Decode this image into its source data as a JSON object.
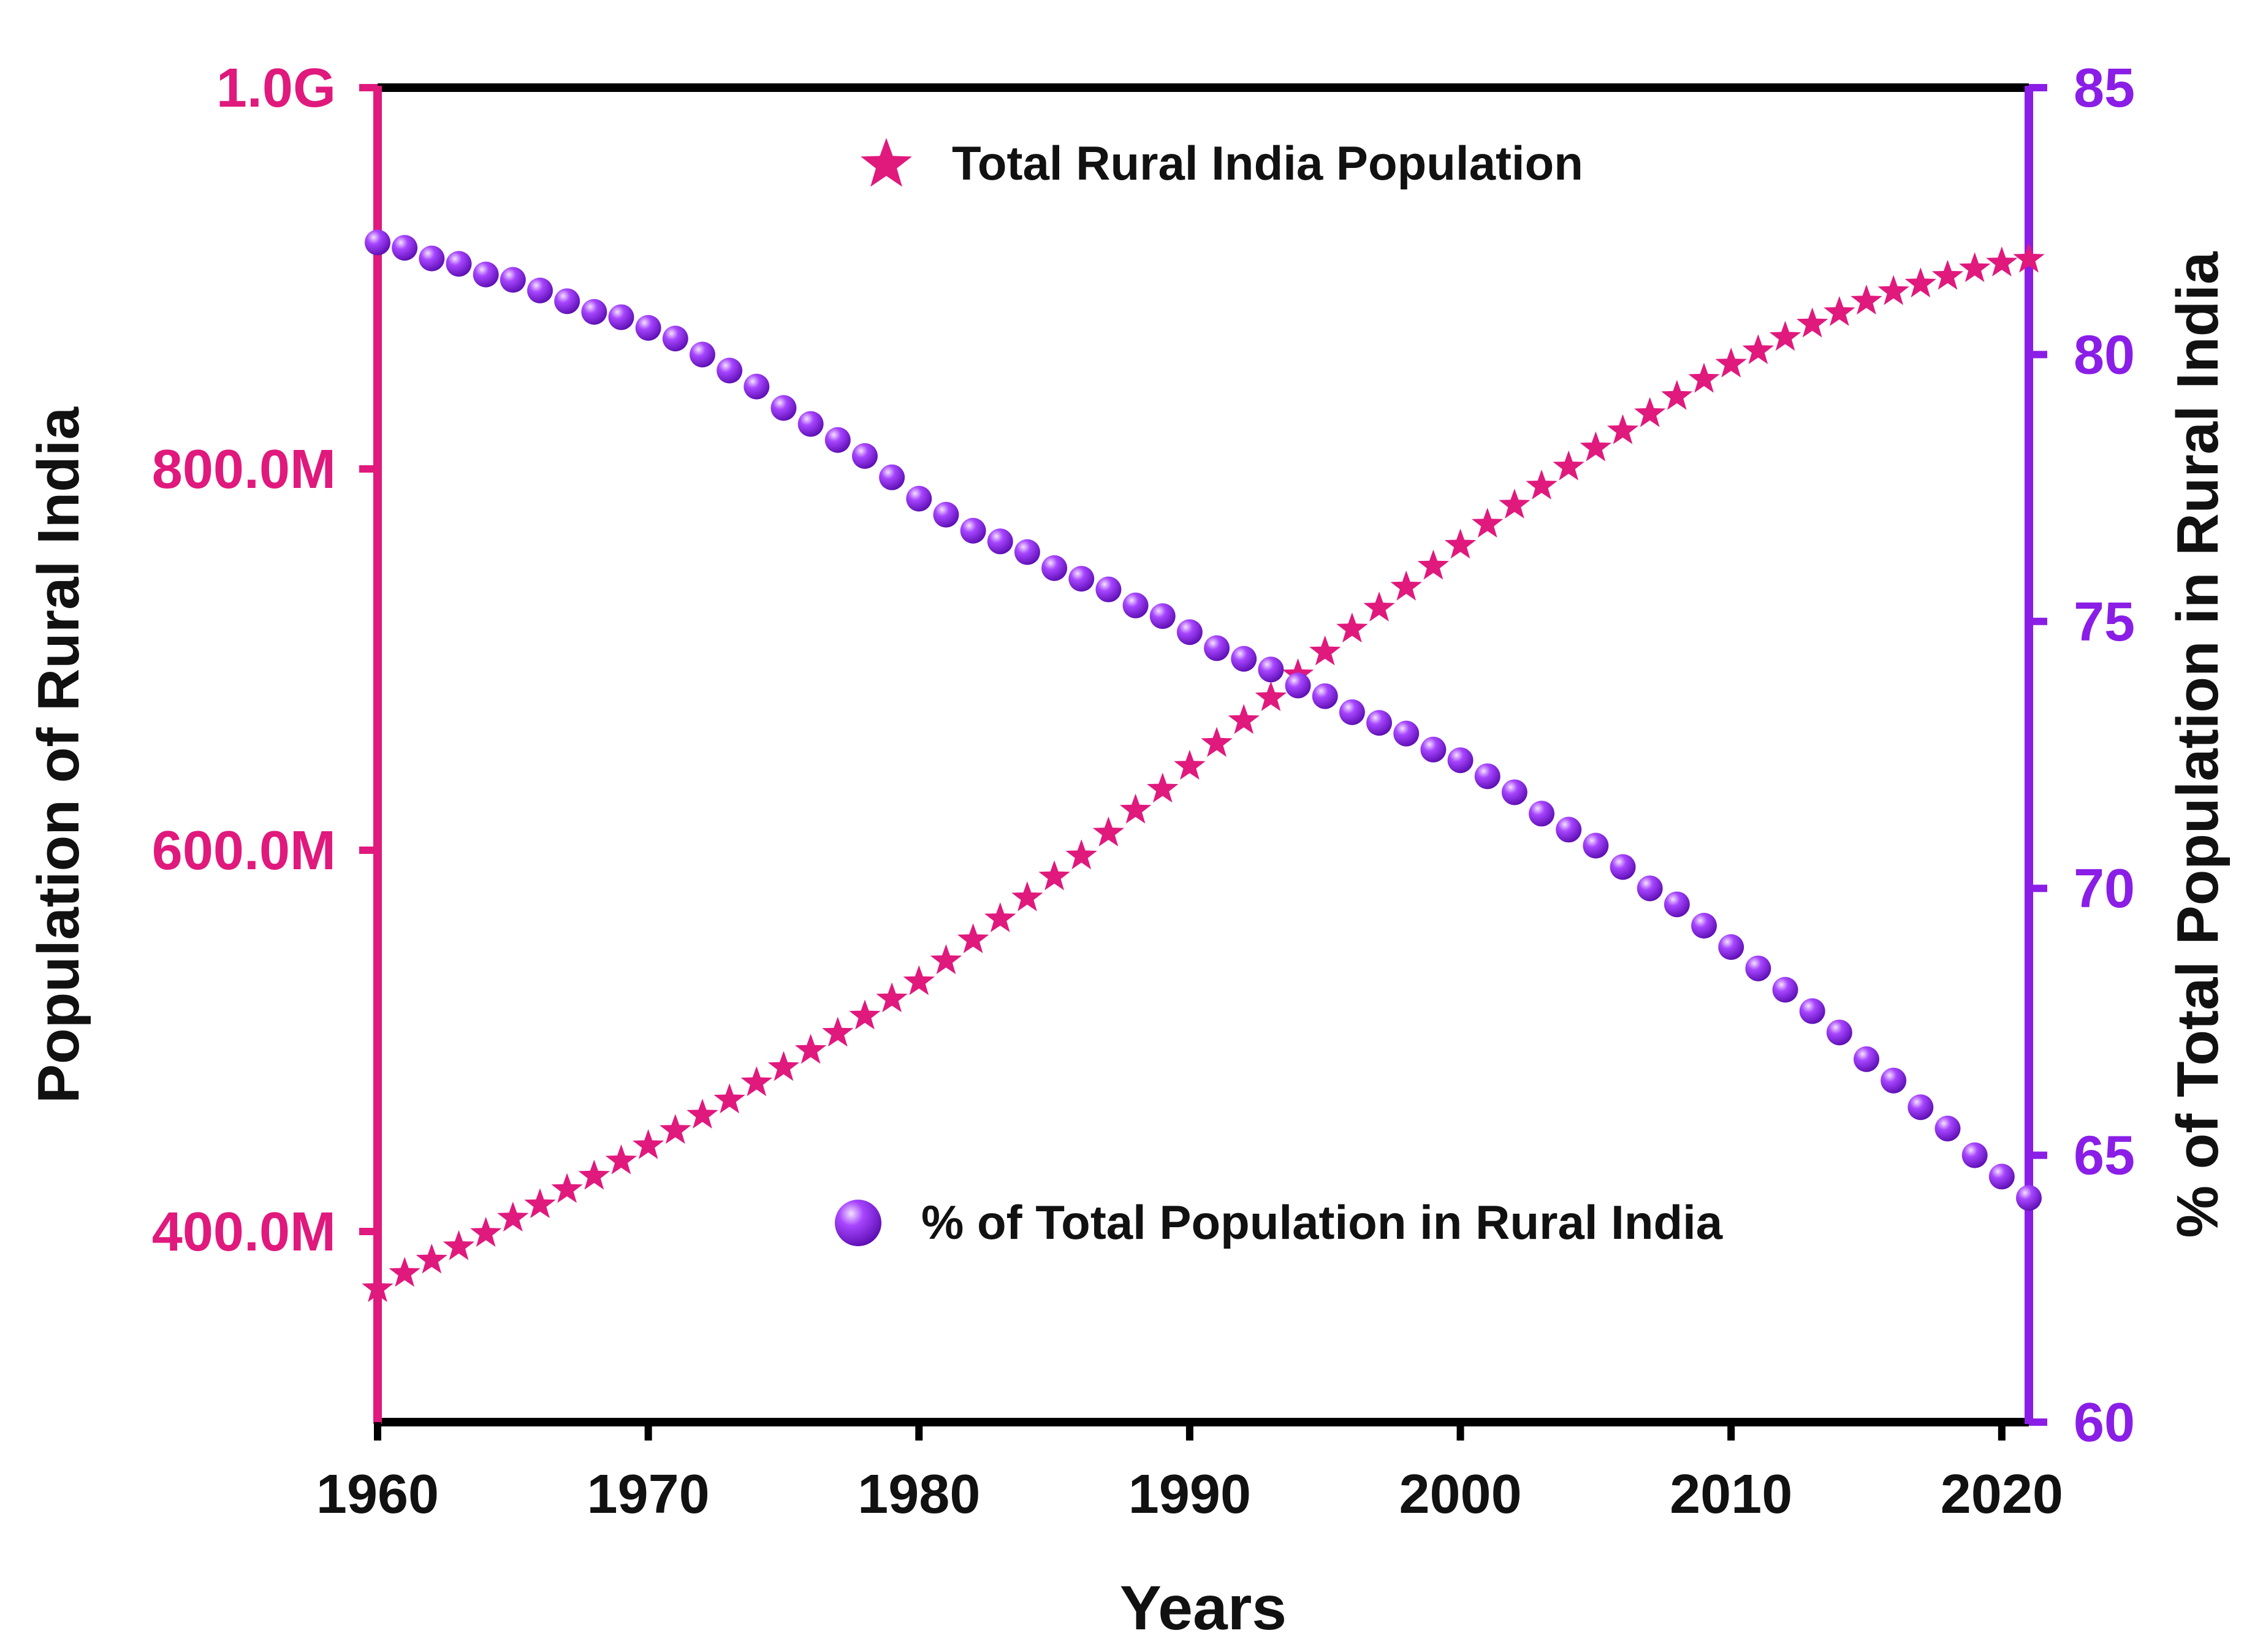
{
  "colors": {
    "left_axis": "#e0197d",
    "right_axis": "#8a1ee6",
    "frame": "#000000",
    "text": "#111111"
  },
  "legend": {
    "population_label": "Total Rural India Population",
    "percent_label": "% of Total Population in Rural India"
  },
  "chart_data": {
    "type": "scatter",
    "xlabel": "Years",
    "ylabel_left": "Population of Rural India",
    "ylabel_right": "% of Total Population in Rural India",
    "xlim": [
      1960,
      2021
    ],
    "xticks": [
      1960,
      1970,
      1980,
      1990,
      2000,
      2010,
      2020
    ],
    "ylim_left": [
      300000000,
      1000000000
    ],
    "yticks_left": [
      {
        "value": 400000000,
        "label": "400.0M"
      },
      {
        "value": 600000000,
        "label": "600.0M"
      },
      {
        "value": 800000000,
        "label": "800.0M"
      },
      {
        "value": 1000000000,
        "label": "1.0G"
      }
    ],
    "ylim_right": [
      60,
      85
    ],
    "yticks_right": [
      60,
      65,
      70,
      75,
      80,
      85
    ],
    "x": [
      1960,
      1961,
      1962,
      1963,
      1964,
      1965,
      1966,
      1967,
      1968,
      1969,
      1970,
      1971,
      1972,
      1973,
      1974,
      1975,
      1976,
      1977,
      1978,
      1979,
      1980,
      1981,
      1982,
      1983,
      1984,
      1985,
      1986,
      1987,
      1988,
      1989,
      1990,
      1991,
      1992,
      1993,
      1994,
      1995,
      1996,
      1997,
      1998,
      1999,
      2000,
      2001,
      2002,
      2003,
      2004,
      2005,
      2006,
      2007,
      2008,
      2009,
      2010,
      2011,
      2012,
      2013,
      2014,
      2015,
      2016,
      2017,
      2018,
      2019,
      2020,
      2021
    ],
    "series": [
      {
        "name": "Total Rural India Population",
        "axis": "left",
        "marker": "star",
        "values": [
          370,
          378,
          385,
          392,
          399,
          407,
          414,
          422,
          429,
          437,
          445,
          453,
          461,
          469,
          478,
          486,
          495,
          504,
          513,
          522,
          531,
          542,
          553,
          564,
          575,
          586,
          597,
          609,
          621,
          632,
          644,
          656,
          668,
          680,
          692,
          704,
          716,
          727,
          738,
          749,
          760,
          771,
          781,
          791,
          801,
          811,
          820,
          829,
          838,
          847,
          855,
          862,
          869,
          876,
          882,
          888,
          893,
          897,
          901,
          905,
          908,
          910
        ]
      },
      {
        "name": "% of Total Population in Rural India",
        "axis": "right",
        "marker": "sphere",
        "values": [
          82.1,
          82.0,
          81.8,
          81.7,
          81.5,
          81.4,
          81.2,
          81.0,
          80.8,
          80.7,
          80.5,
          80.3,
          80.0,
          79.7,
          79.4,
          79.0,
          78.7,
          78.4,
          78.1,
          77.7,
          77.3,
          77.0,
          76.7,
          76.5,
          76.3,
          76.0,
          75.8,
          75.6,
          75.3,
          75.1,
          74.8,
          74.5,
          74.3,
          74.1,
          73.8,
          73.6,
          73.3,
          73.1,
          72.9,
          72.6,
          72.4,
          72.1,
          71.8,
          71.4,
          71.1,
          70.8,
          70.4,
          70.0,
          69.7,
          69.3,
          68.9,
          68.5,
          68.1,
          67.7,
          67.3,
          66.8,
          66.4,
          65.9,
          65.5,
          65.0,
          64.6,
          64.2
        ]
      }
    ]
  }
}
